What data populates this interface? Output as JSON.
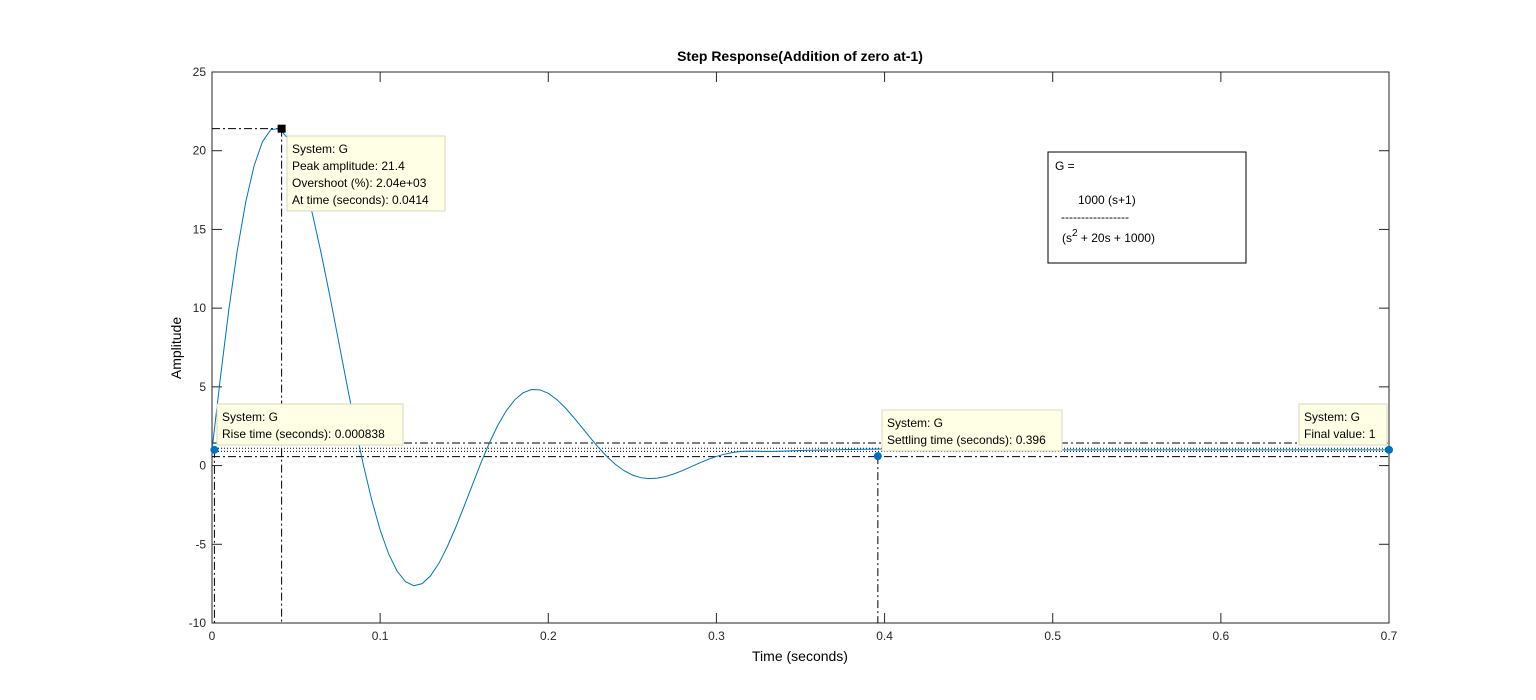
{
  "chart_data": {
    "type": "line",
    "title": "Step Response(Addition of zero at-1)",
    "xlabel": "Time (seconds)",
    "ylabel": "Amplitude",
    "xlim": [
      0,
      0.7
    ],
    "ylim": [
      -10,
      25
    ],
    "x_ticks": [
      "0",
      "0.1",
      "0.2",
      "0.3",
      "0.4",
      "0.5",
      "0.6",
      "0.7"
    ],
    "y_ticks": [
      "-10",
      "-5",
      "0",
      "5",
      "10",
      "15",
      "20",
      "25"
    ],
    "grid": false,
    "series_color": "#0072BD",
    "series": [
      {
        "x": [
          0,
          0.005,
          0.01,
          0.015,
          0.02,
          0.025,
          0.03,
          0.035,
          0.04,
          0.045,
          0.05,
          0.055,
          0.06,
          0.065,
          0.07,
          0.075,
          0.08,
          0.085,
          0.09,
          0.095,
          0.1,
          0.105,
          0.11,
          0.115,
          0.12,
          0.125,
          0.13,
          0.135,
          0.14,
          0.145,
          0.15,
          0.155,
          0.16,
          0.165,
          0.17,
          0.175,
          0.18,
          0.185,
          0.19,
          0.195,
          0.2,
          0.205,
          0.21,
          0.215,
          0.22,
          0.225,
          0.23,
          0.235,
          0.24,
          0.245,
          0.25,
          0.255,
          0.26,
          0.265,
          0.27,
          0.275,
          0.28,
          0.285,
          0.29,
          0.295,
          0.3,
          0.305,
          0.31,
          0.315,
          0.32,
          0.325,
          0.33,
          0.335,
          0.34,
          0.345,
          0.35,
          0.355,
          0.36,
          0.365,
          0.37,
          0.375,
          0.38,
          0.385,
          0.39,
          0.395,
          0.4,
          0.41,
          0.42,
          0.43,
          0.44,
          0.45,
          0.46,
          0.47,
          0.48,
          0.49,
          0.5,
          0.52,
          0.54,
          0.56,
          0.58,
          0.6,
          0.62,
          0.64,
          0.66,
          0.68,
          0.7
        ],
        "values": [
          1.0,
          5.59,
          9.89,
          13.64,
          16.71,
          19.03,
          20.57,
          21.34,
          21.4,
          20.8,
          19.6,
          17.96,
          15.86,
          13.45,
          10.82,
          8.06,
          5.28,
          2.57,
          0.05,
          -2.19,
          -4.09,
          -5.6,
          -6.69,
          -7.37,
          -7.63,
          -7.5,
          -7.0,
          -6.2,
          -5.14,
          -3.91,
          -2.57,
          -1.19,
          0.18,
          1.45,
          2.56,
          3.48,
          4.17,
          4.62,
          4.83,
          4.81,
          4.59,
          4.2,
          3.68,
          3.07,
          2.42,
          1.76,
          1.13,
          0.56,
          0.07,
          -0.32,
          -0.6,
          -0.77,
          -0.83,
          -0.8,
          -0.69,
          -0.52,
          -0.31,
          -0.07,
          0.17,
          0.39,
          0.58,
          0.73,
          0.84,
          0.9,
          0.92,
          0.91,
          0.89,
          0.9,
          0.92,
          0.94,
          0.96,
          0.97,
          0.98,
          0.99,
          1.0,
          1.01,
          1.02,
          1.03,
          1.04,
          1.045,
          1.05,
          1.05,
          1.04,
          1.03,
          1.02,
          1.01,
          1.0,
          0.99,
          0.99,
          0.99,
          1.0,
          1.0,
          1.0,
          1.0,
          1.0,
          1.0,
          1.0,
          1.0,
          1.0,
          1.0,
          1.0
        ]
      }
    ],
    "rise_band": {
      "lower": 0.9,
      "upper": 1.1,
      "steady": 1.0
    },
    "settle_band": {
      "lower": 0.57,
      "upper": 1.43
    },
    "datatips": {
      "peak": {
        "x": 0.0414,
        "y": 21.4,
        "lines": [
          "System: G",
          "Peak amplitude: 21.4",
          "Overshoot (%): 2.04e+03",
          "At time (seconds): 0.0414"
        ]
      },
      "rise": {
        "x": 0.000838,
        "y": 1.0,
        "lines": [
          "System: G",
          "Rise time (seconds): 0.000838"
        ]
      },
      "settling": {
        "x": 0.396,
        "y": 0.6,
        "lines": [
          "System: G",
          "Settling time (seconds): 0.396"
        ]
      },
      "final": {
        "x": 0.7,
        "y": 1.0,
        "lines": [
          "System: G",
          "Final value: 1"
        ]
      }
    },
    "annotation": {
      "line1": "G =",
      "numerator": "1000 (s+1)",
      "bar": "-----------------",
      "denominator_pre": "(s",
      "denominator_sup": "2",
      "denominator_post": " + 20s + 1000)"
    }
  }
}
